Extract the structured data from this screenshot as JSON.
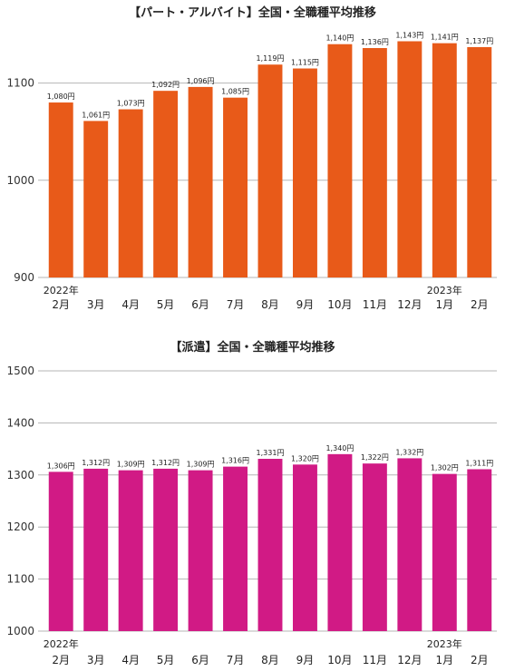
{
  "chart_data": [
    {
      "type": "bar",
      "title": "【パート・アルバイト】全国・全職種平均推移",
      "categories": [
        "2月",
        "3月",
        "4月",
        "5月",
        "6月",
        "7月",
        "8月",
        "9月",
        "10月",
        "11月",
        "12月",
        "1月",
        "2月"
      ],
      "year_labels": [
        {
          "index": 0,
          "text": "2022年"
        },
        {
          "index": 11,
          "text": "2023年"
        }
      ],
      "values": [
        1080,
        1061,
        1073,
        1092,
        1096,
        1085,
        1119,
        1115,
        1140,
        1136,
        1143,
        1141,
        1137
      ],
      "data_labels": [
        "1,080円",
        "1,061円",
        "1,073円",
        "1,092円",
        "1,096円",
        "1,085円",
        "1,119円",
        "1,115円",
        "1,140円",
        "1,136円",
        "1,143円",
        "1,141円",
        "1,137円"
      ],
      "yticks": [
        900,
        1000,
        1100
      ],
      "ylim": [
        900,
        1150
      ],
      "grid": true,
      "color": "#E85A19"
    },
    {
      "type": "bar",
      "title": "【派遣】全国・全職種平均推移",
      "categories": [
        "2月",
        "3月",
        "4月",
        "5月",
        "6月",
        "7月",
        "8月",
        "9月",
        "10月",
        "11月",
        "12月",
        "1月",
        "2月"
      ],
      "year_labels": [
        {
          "index": 0,
          "text": "2022年"
        },
        {
          "index": 11,
          "text": "2023年"
        }
      ],
      "values": [
        1306,
        1312,
        1309,
        1312,
        1309,
        1316,
        1331,
        1320,
        1340,
        1322,
        1332,
        1302,
        1311
      ],
      "data_labels": [
        "1,306円",
        "1,312円",
        "1,309円",
        "1,312円",
        "1,309円",
        "1,316円",
        "1,331円",
        "1,320円",
        "1,340円",
        "1,322円",
        "1,332円",
        "1,302円",
        "1,311円"
      ],
      "yticks": [
        1000,
        1100,
        1200,
        1300,
        1400,
        1500
      ],
      "ylim": [
        1000,
        1500
      ],
      "grid": true,
      "color": "#D11A85"
    }
  ]
}
